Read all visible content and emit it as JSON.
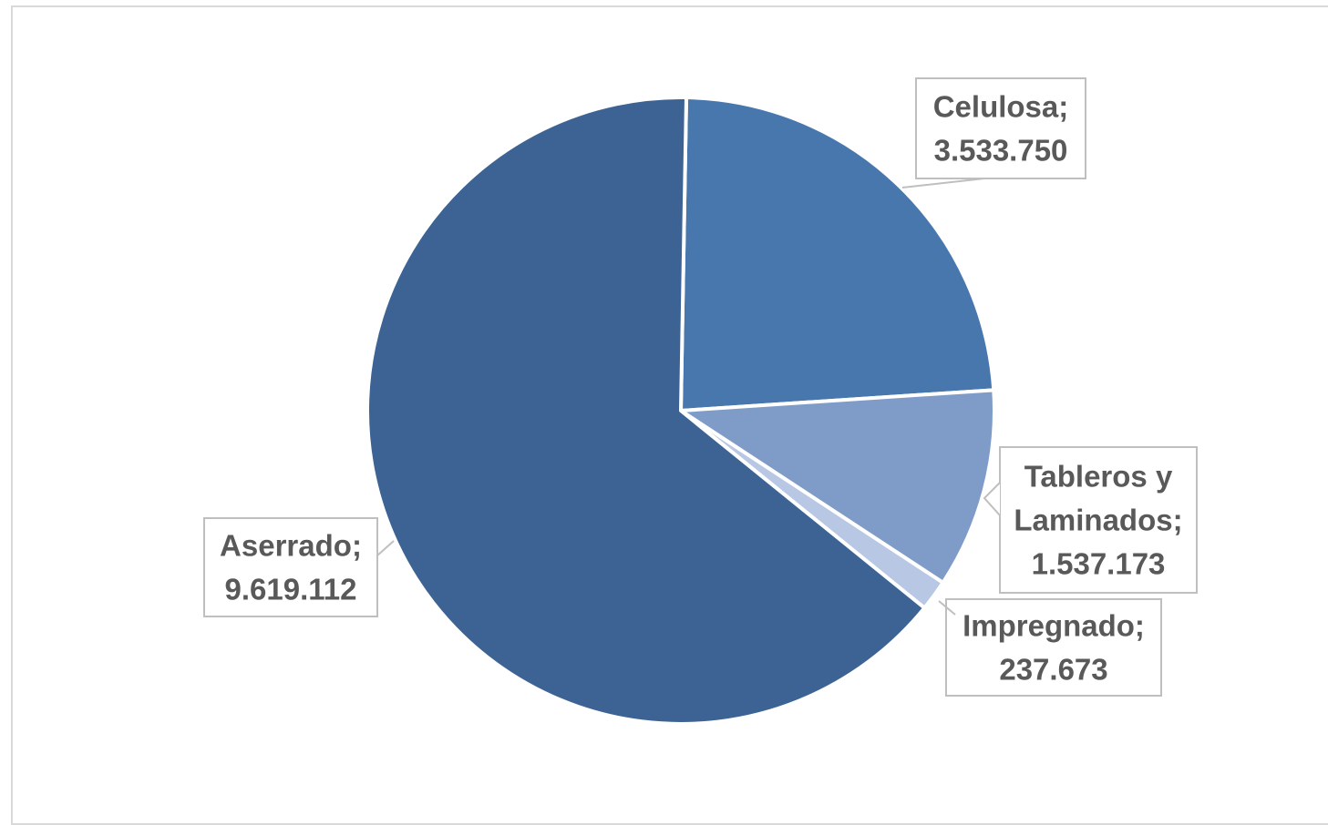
{
  "chart_data": {
    "type": "pie",
    "title": "",
    "slices": [
      {
        "label": "Celulosa",
        "value": 3533750,
        "display": "3.533.750",
        "color": "#4877ae"
      },
      {
        "label": "Tableros y Laminados",
        "value": 1537173,
        "display": "1.537.173",
        "color": "#7f9cc8"
      },
      {
        "label": "Impregnado",
        "value": 237673,
        "display": "237.673",
        "color": "#b8c7e3"
      },
      {
        "label": "Aserrado",
        "value": 9619112,
        "display": "9.619.112",
        "color": "#3c6394"
      }
    ],
    "start_angle_deg": 1,
    "direction": "clockwise",
    "data_labels": [
      {
        "lines": [
          "Celulosa;",
          "3.533.750"
        ]
      },
      {
        "lines": [
          "Tableros y",
          "Laminados;",
          "1.537.173"
        ]
      },
      {
        "lines": [
          "Impregnado;",
          "237.673"
        ]
      },
      {
        "lines": [
          "Aserrado;",
          "9.619.112"
        ]
      }
    ],
    "legend": "none"
  }
}
